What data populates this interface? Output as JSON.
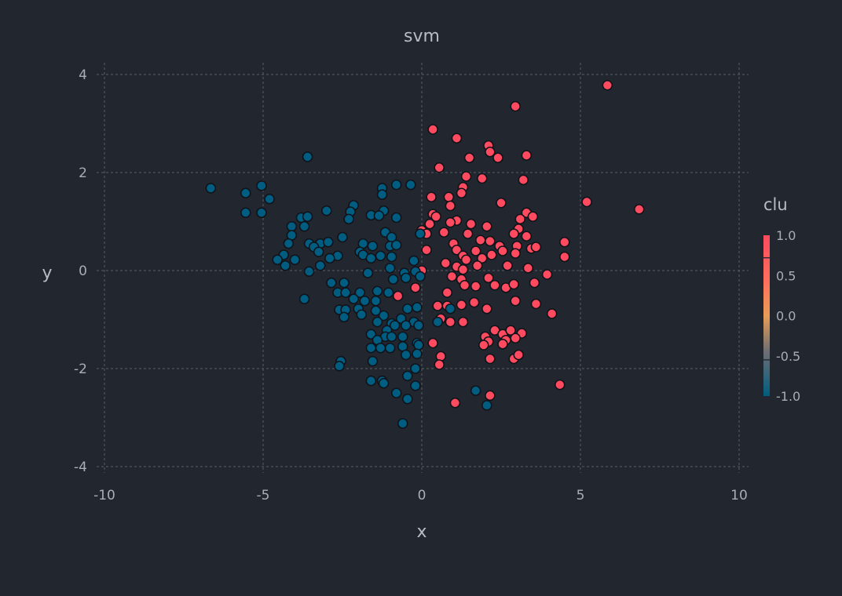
{
  "colors": {
    "background": "#22262e",
    "cluster_pos": "#ff4a5f",
    "cluster_neg": "#005d82",
    "mid": "#e79c56"
  },
  "chart_data": {
    "type": "scatter",
    "title": "svm",
    "xlabel": "x",
    "ylabel": "y",
    "xlim": [
      -10,
      10
    ],
    "ylim": [
      -4,
      4
    ],
    "x_ticks": [
      "-10",
      "-5",
      "0",
      "5",
      "10"
    ],
    "y_ticks": [
      "-4",
      "-2",
      "0",
      "2",
      "4"
    ],
    "x_tick_values": [
      -10,
      -5,
      0,
      5,
      10
    ],
    "y_tick_values": [
      -4,
      -2,
      0,
      2,
      4
    ],
    "grid": true,
    "legend": {
      "title": "clu",
      "placement": "right",
      "ticks": [
        "1.0",
        "0.5",
        "0.0",
        "-0.5",
        "-1.0"
      ],
      "tick_values": [
        1.0,
        0.5,
        0.0,
        -0.5,
        -1.0
      ]
    },
    "series": [
      {
        "clu": 1,
        "color": "#ff4a5f",
        "points": [
          [
            5.85,
            3.78
          ],
          [
            2.95,
            3.35
          ],
          [
            0.35,
            2.88
          ],
          [
            1.1,
            2.7
          ],
          [
            2.1,
            2.55
          ],
          [
            2.15,
            2.42
          ],
          [
            2.4,
            2.3
          ],
          [
            3.3,
            2.35
          ],
          [
            1.5,
            2.3
          ],
          [
            0.55,
            2.1
          ],
          [
            1.4,
            1.92
          ],
          [
            1.9,
            1.88
          ],
          [
            3.2,
            1.85
          ],
          [
            1.3,
            1.7
          ],
          [
            1.25,
            1.58
          ],
          [
            0.3,
            1.5
          ],
          [
            0.85,
            1.5
          ],
          [
            5.2,
            1.4
          ],
          [
            2.5,
            1.38
          ],
          [
            6.85,
            1.25
          ],
          [
            0.9,
            1.32
          ],
          [
            0.35,
            1.15
          ],
          [
            0.45,
            1.1
          ],
          [
            3.3,
            1.18
          ],
          [
            3.5,
            1.1
          ],
          [
            1.1,
            1.02
          ],
          [
            3.1,
            1.05
          ],
          [
            0.9,
            0.98
          ],
          [
            1.55,
            0.95
          ],
          [
            2.05,
            0.9
          ],
          [
            0.25,
            0.95
          ],
          [
            0.0,
            0.82
          ],
          [
            0.15,
            0.75
          ],
          [
            3.05,
            0.85
          ],
          [
            0.7,
            0.78
          ],
          [
            1.45,
            0.75
          ],
          [
            2.9,
            0.75
          ],
          [
            3.3,
            0.7
          ],
          [
            1.85,
            0.62
          ],
          [
            2.15,
            0.6
          ],
          [
            1.0,
            0.55
          ],
          [
            2.45,
            0.5
          ],
          [
            3.0,
            0.5
          ],
          [
            3.45,
            0.45
          ],
          [
            3.6,
            0.48
          ],
          [
            4.5,
            0.58
          ],
          [
            0.15,
            0.42
          ],
          [
            1.1,
            0.42
          ],
          [
            1.7,
            0.4
          ],
          [
            2.55,
            0.4
          ],
          [
            2.2,
            0.32
          ],
          [
            2.95,
            0.35
          ],
          [
            1.3,
            0.3
          ],
          [
            1.4,
            0.22
          ],
          [
            1.9,
            0.25
          ],
          [
            4.5,
            0.28
          ],
          [
            0.75,
            0.15
          ],
          [
            1.1,
            0.08
          ],
          [
            1.75,
            0.1
          ],
          [
            2.7,
            0.1
          ],
          [
            3.35,
            0.05
          ],
          [
            1.3,
            0.02
          ],
          [
            0.0,
            0.0
          ],
          [
            0.95,
            -0.12
          ],
          [
            1.25,
            -0.18
          ],
          [
            2.1,
            -0.15
          ],
          [
            3.95,
            -0.08
          ],
          [
            1.35,
            -0.3
          ],
          [
            1.7,
            -0.32
          ],
          [
            2.3,
            -0.3
          ],
          [
            2.65,
            -0.35
          ],
          [
            2.9,
            -0.28
          ],
          [
            3.55,
            -0.25
          ],
          [
            0.8,
            -0.45
          ],
          [
            -0.2,
            -0.35
          ],
          [
            -0.75,
            -0.52
          ],
          [
            1.65,
            -0.65
          ],
          [
            2.95,
            -0.62
          ],
          [
            3.6,
            -0.68
          ],
          [
            0.5,
            -0.72
          ],
          [
            0.8,
            -0.72
          ],
          [
            1.25,
            -0.7
          ],
          [
            2.05,
            -0.78
          ],
          [
            4.1,
            -0.88
          ],
          [
            0.6,
            -0.98
          ],
          [
            0.9,
            -1.05
          ],
          [
            1.3,
            -1.05
          ],
          [
            2.3,
            -1.22
          ],
          [
            2.55,
            -1.3
          ],
          [
            2.8,
            -1.22
          ],
          [
            3.15,
            -1.28
          ],
          [
            2.0,
            -1.35
          ],
          [
            2.1,
            -1.45
          ],
          [
            2.65,
            -1.42
          ],
          [
            2.95,
            -1.38
          ],
          [
            1.95,
            -1.52
          ],
          [
            2.55,
            -1.5
          ],
          [
            0.35,
            -1.48
          ],
          [
            2.9,
            -1.8
          ],
          [
            2.15,
            -1.8
          ],
          [
            3.05,
            -1.72
          ],
          [
            0.6,
            -1.75
          ],
          [
            0.55,
            -1.92
          ],
          [
            4.35,
            -2.33
          ],
          [
            2.15,
            -2.55
          ],
          [
            1.05,
            -2.7
          ]
        ]
      },
      {
        "clu": -1,
        "color": "#005d82",
        "points": [
          [
            -3.6,
            2.32
          ],
          [
            -6.65,
            1.68
          ],
          [
            -5.55,
            1.58
          ],
          [
            -5.05,
            1.73
          ],
          [
            -4.8,
            1.46
          ],
          [
            -5.55,
            1.18
          ],
          [
            -5.05,
            1.18
          ],
          [
            -3.0,
            1.22
          ],
          [
            -2.15,
            1.33
          ],
          [
            -1.25,
            1.68
          ],
          [
            -0.8,
            1.75
          ],
          [
            -0.35,
            1.75
          ],
          [
            -1.25,
            1.55
          ],
          [
            -1.6,
            1.13
          ],
          [
            -2.25,
            1.2
          ],
          [
            -2.3,
            1.05
          ],
          [
            -1.2,
            1.22
          ],
          [
            -1.35,
            1.12
          ],
          [
            -0.8,
            1.08
          ],
          [
            -3.8,
            1.08
          ],
          [
            -3.6,
            1.1
          ],
          [
            -3.7,
            0.9
          ],
          [
            -4.1,
            0.9
          ],
          [
            -4.1,
            0.72
          ],
          [
            -2.5,
            0.68
          ],
          [
            -1.15,
            0.78
          ],
          [
            -0.95,
            0.68
          ],
          [
            -0.05,
            0.75
          ],
          [
            -4.2,
            0.55
          ],
          [
            -3.55,
            0.55
          ],
          [
            -3.2,
            0.55
          ],
          [
            -2.95,
            0.58
          ],
          [
            -1.85,
            0.55
          ],
          [
            -1.55,
            0.5
          ],
          [
            -1.0,
            0.5
          ],
          [
            -0.8,
            0.52
          ],
          [
            -3.4,
            0.48
          ],
          [
            -3.25,
            0.38
          ],
          [
            -4.35,
            0.32
          ],
          [
            -4.0,
            0.22
          ],
          [
            -4.55,
            0.22
          ],
          [
            -2.65,
            0.3
          ],
          [
            -1.95,
            0.38
          ],
          [
            -1.85,
            0.32
          ],
          [
            -1.6,
            0.25
          ],
          [
            -1.3,
            0.3
          ],
          [
            -0.95,
            0.28
          ],
          [
            -0.25,
            0.2
          ],
          [
            -2.9,
            0.25
          ],
          [
            -4.3,
            0.1
          ],
          [
            -3.2,
            0.1
          ],
          [
            -3.55,
            -0.02
          ],
          [
            -1.7,
            -0.05
          ],
          [
            -1.0,
            0.05
          ],
          [
            -0.55,
            -0.05
          ],
          [
            -0.2,
            -0.02
          ],
          [
            -0.05,
            -0.12
          ],
          [
            -0.9,
            -0.18
          ],
          [
            -0.5,
            -0.15
          ],
          [
            -2.85,
            -0.25
          ],
          [
            -2.45,
            -0.25
          ],
          [
            -2.65,
            -0.45
          ],
          [
            -2.4,
            -0.45
          ],
          [
            -1.95,
            -0.45
          ],
          [
            -1.4,
            -0.42
          ],
          [
            -1.05,
            -0.45
          ],
          [
            -2.15,
            -0.58
          ],
          [
            -1.8,
            -0.62
          ],
          [
            -1.45,
            -0.62
          ],
          [
            -3.7,
            -0.58
          ],
          [
            -2.6,
            -0.8
          ],
          [
            -2.4,
            -0.8
          ],
          [
            -2.0,
            -0.78
          ],
          [
            -1.45,
            -0.82
          ],
          [
            -0.45,
            -0.78
          ],
          [
            -0.15,
            -0.75
          ],
          [
            0.9,
            -0.78
          ],
          [
            -2.45,
            -0.95
          ],
          [
            -1.9,
            -0.9
          ],
          [
            -1.2,
            -0.92
          ],
          [
            -0.65,
            -0.98
          ],
          [
            -0.95,
            -1.08
          ],
          [
            -1.4,
            -1.05
          ],
          [
            -0.25,
            -1.05
          ],
          [
            -0.5,
            -1.12
          ],
          [
            -0.85,
            -1.12
          ],
          [
            -1.1,
            -1.22
          ],
          [
            -0.1,
            -1.12
          ],
          [
            0.5,
            -1.05
          ],
          [
            -1.6,
            -1.3
          ],
          [
            -1.15,
            -1.35
          ],
          [
            -0.6,
            -1.35
          ],
          [
            -0.95,
            -1.35
          ],
          [
            -1.4,
            -1.42
          ],
          [
            -0.15,
            -1.48
          ],
          [
            -0.1,
            -1.52
          ],
          [
            -0.6,
            -1.55
          ],
          [
            -1.6,
            -1.58
          ],
          [
            -1.0,
            -1.58
          ],
          [
            -1.3,
            -1.58
          ],
          [
            -0.15,
            -1.7
          ],
          [
            -0.5,
            -1.72
          ],
          [
            -2.55,
            -1.85
          ],
          [
            -1.55,
            -1.85
          ],
          [
            -2.6,
            -1.95
          ],
          [
            -0.2,
            -2.0
          ],
          [
            -0.45,
            -2.15
          ],
          [
            -1.6,
            -2.25
          ],
          [
            -1.25,
            -2.25
          ],
          [
            -1.2,
            -2.3
          ],
          [
            -0.2,
            -2.35
          ],
          [
            1.7,
            -2.45
          ],
          [
            -0.8,
            -2.5
          ],
          [
            -0.45,
            -2.62
          ],
          [
            2.05,
            -2.75
          ],
          [
            -0.6,
            -3.12
          ]
        ]
      }
    ]
  }
}
